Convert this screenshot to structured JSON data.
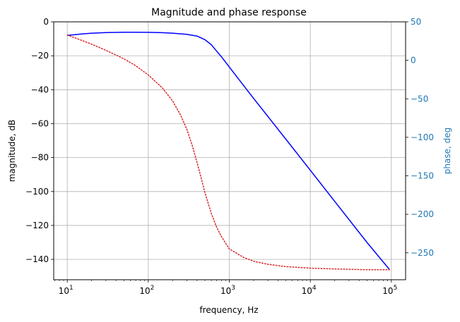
{
  "chart_data": {
    "type": "line",
    "title": "Magnitude and phase response",
    "xlabel": "frequency, Hz",
    "ylabel_left": "magnitude, dB",
    "ylabel_right": "phase, deg",
    "xscale": "log",
    "xlim": [
      6.8,
      150000
    ],
    "ylim_left": [
      -152,
      0
    ],
    "ylim_right": [
      -285,
      50
    ],
    "grid": true,
    "x_ticks": [
      {
        "value": 10,
        "base": "10",
        "exp": "1"
      },
      {
        "value": 100,
        "base": "10",
        "exp": "2"
      },
      {
        "value": 1000,
        "base": "10",
        "exp": "3"
      },
      {
        "value": 10000,
        "base": "10",
        "exp": "4"
      },
      {
        "value": 100000,
        "base": "10",
        "exp": "5"
      }
    ],
    "y_ticks_left": [
      0,
      -20,
      -40,
      -60,
      -80,
      -100,
      -120,
      -140
    ],
    "y_ticks_right": [
      50,
      0,
      -50,
      -100,
      -150,
      -200,
      -250
    ],
    "colors": {
      "magnitude": "#0000ff",
      "phase": "#d62728",
      "right_axis": "#1f77b4",
      "grid": "#b0b0b0"
    },
    "series": [
      {
        "axis": "left",
        "style": "solid",
        "color": "#0000ff",
        "x": [
          10,
          15,
          20,
          30,
          50,
          70,
          100,
          150,
          200,
          300,
          400,
          500,
          600,
          700,
          800,
          1000,
          1500,
          2000,
          3000,
          5000,
          10000,
          20000,
          50000,
          95000
        ],
        "y": [
          -8,
          -7.2,
          -6.7,
          -6.3,
          -6.1,
          -6.1,
          -6.2,
          -6.4,
          -6.7,
          -7.4,
          -8.4,
          -10.5,
          -13.5,
          -17.3,
          -20.6,
          -26.6,
          -37.5,
          -45.2,
          -55.8,
          -69.2,
          -87.5,
          -105.8,
          -130,
          -146
        ]
      },
      {
        "axis": "right",
        "style": "dotted",
        "color": "#d62728",
        "x": [
          10,
          15,
          20,
          30,
          50,
          70,
          100,
          150,
          200,
          250,
          300,
          350,
          400,
          450,
          500,
          600,
          700,
          800,
          1000,
          1500,
          2000,
          3000,
          5000,
          10000,
          20000,
          50000,
          95000
        ],
        "y": [
          33,
          26,
          21,
          13,
          2,
          -7,
          -19,
          -36,
          -53,
          -71,
          -90,
          -111,
          -133,
          -153,
          -172,
          -199,
          -217,
          -229,
          -245,
          -256,
          -261,
          -265,
          -268,
          -270,
          -271,
          -272,
          -272
        ]
      }
    ]
  }
}
